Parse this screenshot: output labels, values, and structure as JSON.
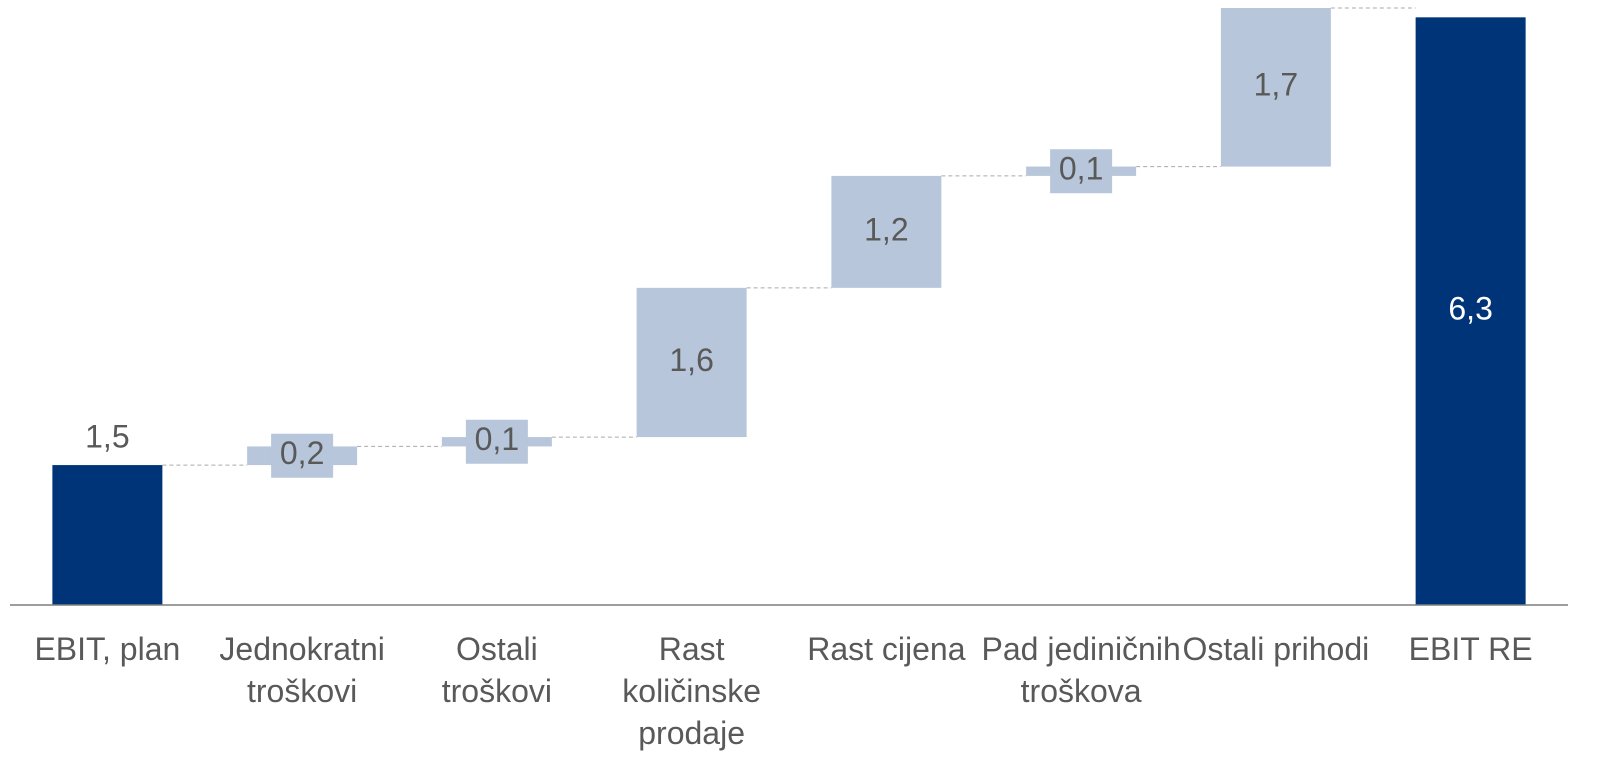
{
  "chart_data": {
    "type": "waterfall",
    "categories": [
      "EBIT, plan",
      "Jednokratni troškovi",
      "Ostali troškovi",
      "Rast količinske prodaje",
      "Rast cijena",
      "Pad jediničnih troškova",
      "Ostali prihodi",
      "EBIT RE"
    ],
    "values": [
      1.5,
      0.2,
      0.1,
      1.6,
      1.2,
      0.1,
      1.7,
      6.3
    ],
    "value_labels": [
      "1,5",
      "0,2",
      "0,1",
      "1,6",
      "1,2",
      "0,1",
      "1,7",
      "6,3"
    ],
    "bar_types": [
      "total",
      "step",
      "step",
      "step",
      "step",
      "step",
      "step",
      "total"
    ],
    "total_color": "#003478",
    "step_color": "#b7c6da",
    "ylim": [
      0,
      6.4
    ]
  }
}
